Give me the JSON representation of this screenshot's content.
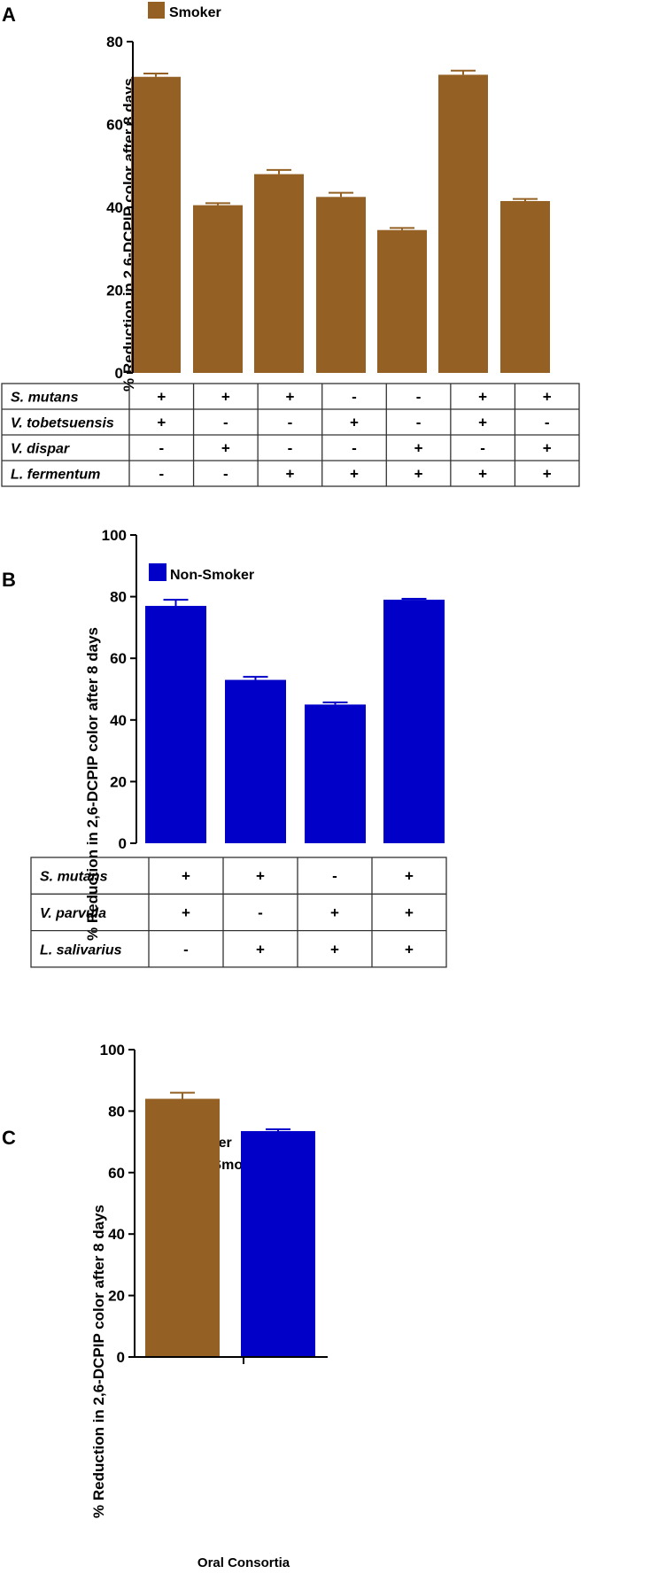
{
  "panels": {
    "A": {
      "letter": "A"
    },
    "B": {
      "letter": "B"
    },
    "C": {
      "letter": "C"
    }
  },
  "colors": {
    "smoker": "#946023",
    "non_smoker": "#0000c8",
    "axis": "#000000",
    "grid_line": "#333333"
  },
  "chart_data": [
    {
      "panel": "A",
      "type": "bar",
      "ylabel": "% Reduction in 2,6-DCPIP color after 8 days",
      "ylim": [
        0,
        80
      ],
      "yticks": [
        0,
        20,
        40,
        60,
        80
      ],
      "legend": [
        {
          "name": "Smoker",
          "color": "#946023"
        }
      ],
      "series": [
        {
          "name": "Smoker",
          "color": "#946023",
          "values": [
            71.5,
            40.5,
            48,
            42.5,
            34.5,
            72,
            41.5
          ],
          "errors": [
            0.8,
            0.5,
            1.0,
            1.0,
            0.5,
            1.0,
            0.5
          ]
        }
      ],
      "table": {
        "rows": [
          {
            "label": "S. mutans",
            "signs": [
              "+",
              "+",
              "+",
              "-",
              "-",
              "+",
              "+"
            ]
          },
          {
            "label": "V. tobetsuensis",
            "signs": [
              "+",
              "-",
              "-",
              "+",
              "-",
              "+",
              "-"
            ]
          },
          {
            "label": "V. dispar",
            "signs": [
              "-",
              "+",
              "-",
              "-",
              "+",
              "-",
              "+"
            ]
          },
          {
            "label": "L. fermentum",
            "signs": [
              "-",
              "-",
              "+",
              "+",
              "+",
              "+",
              "+"
            ]
          }
        ]
      }
    },
    {
      "panel": "B",
      "type": "bar",
      "ylabel": "% Reduction in 2,6-DCPIP color after 8 days",
      "ylim": [
        0,
        100
      ],
      "yticks": [
        0,
        20,
        40,
        60,
        80,
        100
      ],
      "legend": [
        {
          "name": "Non-Smoker",
          "color": "#0000c8"
        }
      ],
      "series": [
        {
          "name": "Non-Smoker",
          "color": "#0000c8",
          "values": [
            77,
            53,
            45,
            79
          ],
          "errors": [
            2.0,
            1.0,
            0.7,
            0.3
          ]
        }
      ],
      "table": {
        "rows": [
          {
            "label": "S. mutans",
            "signs": [
              "+",
              "+",
              "-",
              "+"
            ]
          },
          {
            "label": "V. parvula",
            "signs": [
              "+",
              "-",
              "+",
              "+"
            ]
          },
          {
            "label": "L. salivarius",
            "signs": [
              "-",
              "+",
              "+",
              "+"
            ]
          }
        ]
      }
    },
    {
      "panel": "C",
      "type": "bar",
      "ylabel": "% Reduction in 2,6-DCPIP color after 8 days",
      "ylim": [
        0,
        100
      ],
      "yticks": [
        0,
        20,
        40,
        60,
        80,
        100
      ],
      "categories": [
        "Oral Consortia"
      ],
      "legend": [
        {
          "name": "Smoker",
          "color": "#946023"
        },
        {
          "name": "Non-Smoker",
          "color": "#0000c8"
        }
      ],
      "series": [
        {
          "name": "Smoker",
          "color": "#946023",
          "values": [
            84
          ],
          "errors": [
            2.0
          ]
        },
        {
          "name": "Non-Smoker",
          "color": "#0000c8",
          "values": [
            73.5
          ],
          "errors": [
            0.6
          ]
        }
      ]
    }
  ]
}
